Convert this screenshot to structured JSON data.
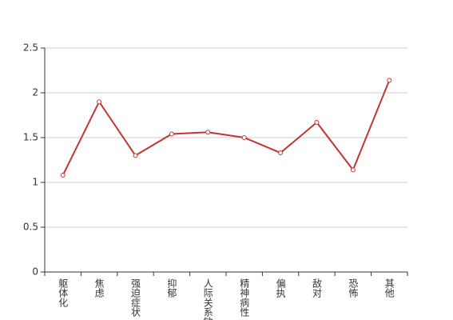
{
  "chart_data": {
    "type": "line",
    "categories": [
      "躯体化",
      "焦虑",
      "强迫症状",
      "抑郁",
      "人际关系敏感",
      "精神病性",
      "偏执",
      "敌对",
      "恐怖",
      "其他"
    ],
    "values": [
      1.08,
      1.9,
      1.3,
      1.54,
      1.56,
      1.5,
      1.33,
      1.67,
      1.14,
      2.14
    ],
    "color": "#c23531",
    "ylim": [
      0,
      2.5
    ],
    "yticks": [
      0,
      0.5,
      1,
      1.5,
      2,
      2.5
    ],
    "grid": true
  }
}
